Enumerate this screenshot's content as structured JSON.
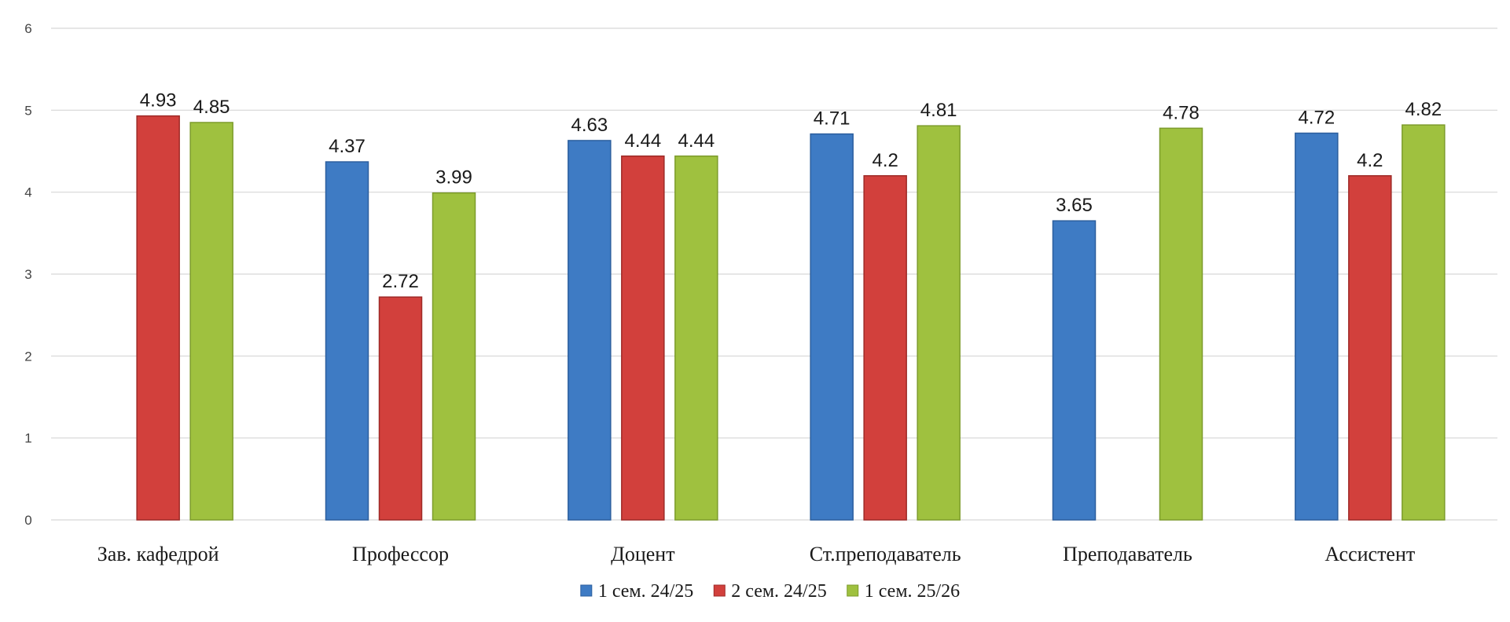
{
  "chart_data": {
    "type": "bar",
    "categories": [
      "Зав. кафедрой",
      "Профессор",
      "Доцент",
      "Ст.преподаватель",
      "Преподаватель",
      "Ассистент"
    ],
    "series": [
      {
        "name": "1 сем. 24/25",
        "color": "#3e7bc4",
        "stroke": "#2c5f9e",
        "values": [
          null,
          4.37,
          4.63,
          4.71,
          3.65,
          4.72
        ]
      },
      {
        "name": "2 сем. 24/25",
        "color": "#d2403c",
        "stroke": "#9e2a27",
        "values": [
          4.93,
          2.72,
          4.44,
          4.2,
          null,
          4.2
        ]
      },
      {
        "name": "1 сем. 25/26",
        "color": "#9fc13f",
        "stroke": "#7d9c2c",
        "values": [
          4.85,
          3.99,
          4.44,
          4.81,
          4.78,
          4.82
        ]
      }
    ],
    "y_ticks": [
      "0",
      "1",
      "2",
      "3",
      "4",
      "5",
      "6"
    ],
    "ylim": [
      0,
      6
    ],
    "grid": true,
    "legend_position": "bottom-center",
    "title": "",
    "xlabel": "",
    "ylabel": ""
  }
}
